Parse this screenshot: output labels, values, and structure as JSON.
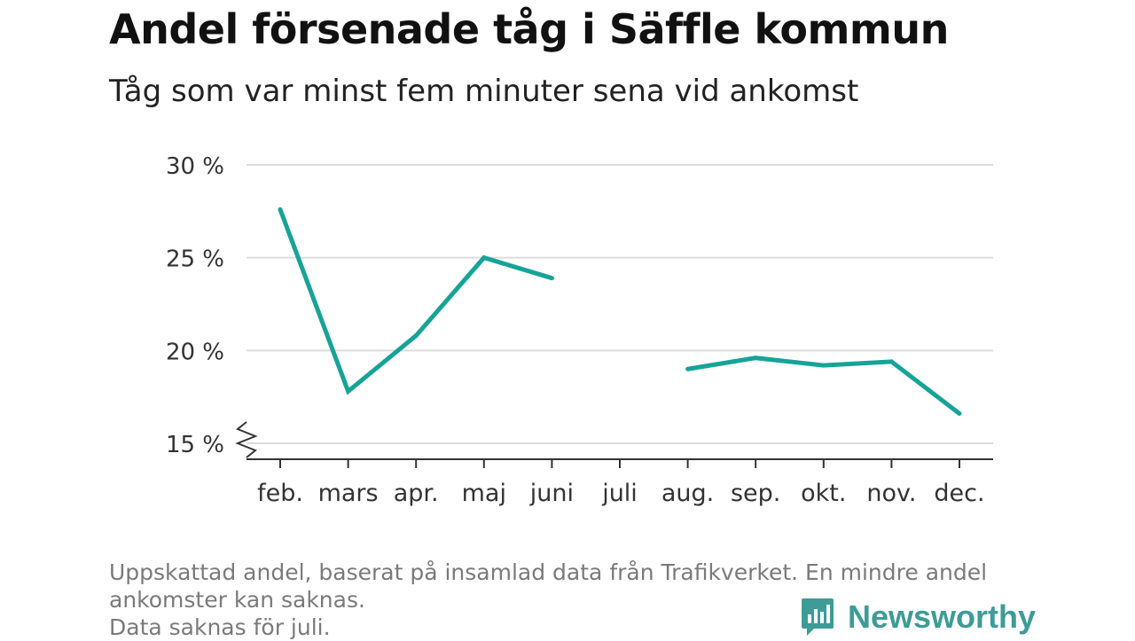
{
  "title": "Andel försenade tåg i Säffle kommun",
  "subtitle": "Tåg som var minst fem minuter sena vid ankomst",
  "notes": [
    "Uppskattad andel, baserat på insamlad data från Trafikverket. En mindre andel",
    "ankomster kan saknas.",
    "Data saknas för juli."
  ],
  "brand": {
    "name": "Newsworthy",
    "color": "#3d9c97"
  },
  "colors": {
    "line": "#17a398",
    "grid": "#dcdcdc",
    "axis": "#333333"
  },
  "chart_data": {
    "type": "line",
    "title": "Andel försenade tåg i Säffle kommun",
    "subtitle": "Tåg som var minst fem minuter sena vid ankomst",
    "categories": [
      "feb.",
      "mars",
      "apr.",
      "maj",
      "juni",
      "juli",
      "aug.",
      "sep.",
      "okt.",
      "nov.",
      "dec."
    ],
    "series": [
      {
        "values": [
          27.6,
          17.8,
          20.8,
          25.0,
          23.9,
          null,
          19.0,
          19.6,
          19.2,
          19.4,
          16.6
        ]
      }
    ],
    "ylim": [
      15,
      30
    ],
    "yticks": [
      15,
      20,
      25,
      30
    ],
    "ytick_labels": [
      "15 %",
      "20 %",
      "25 %",
      "30 %"
    ],
    "y_axis_break": true,
    "grid": true,
    "legend": "none"
  }
}
